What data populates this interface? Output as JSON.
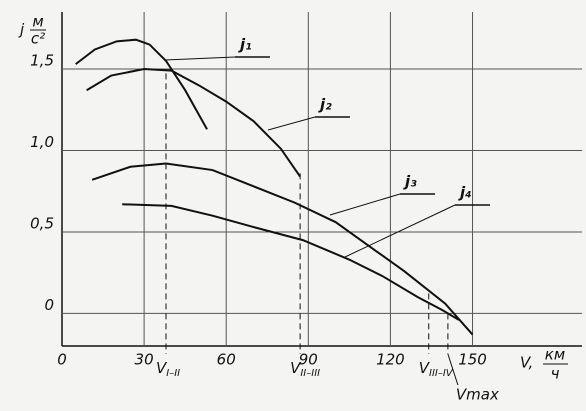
{
  "chart_data": {
    "type": "line",
    "ylabel": "j",
    "yunit": [
      "м",
      "с²"
    ],
    "xlabel": "V,",
    "xunit": [
      "км",
      "ч"
    ],
    "xlim": [
      0,
      190
    ],
    "ylim": [
      -0.2,
      1.85
    ],
    "xticks": [
      0,
      30,
      60,
      90,
      120,
      150
    ],
    "yticks": [
      {
        "value": 0,
        "label": "0"
      },
      {
        "value": 0.5,
        "label": "0,5"
      },
      {
        "value": 1.0,
        "label": "1,0"
      },
      {
        "value": 1.5,
        "label": "1,5"
      }
    ],
    "grid": true,
    "series": [
      {
        "name": "j₁",
        "color": "#111111",
        "x": [
          5,
          12,
          20,
          27,
          32,
          38,
          45,
          53
        ],
        "values": [
          1.53,
          1.62,
          1.67,
          1.68,
          1.65,
          1.55,
          1.37,
          1.13
        ]
      },
      {
        "name": "j₂",
        "color": "#111111",
        "x": [
          9,
          18,
          30,
          40,
          50,
          60,
          70,
          80,
          87
        ],
        "values": [
          1.37,
          1.46,
          1.5,
          1.49,
          1.4,
          1.3,
          1.18,
          1.01,
          0.84
        ]
      },
      {
        "name": "j₃",
        "color": "#111111",
        "x": [
          11,
          25,
          38,
          55,
          70,
          85,
          100,
          115,
          125,
          140,
          150
        ],
        "values": [
          0.82,
          0.9,
          0.92,
          0.88,
          0.78,
          0.68,
          0.56,
          0.38,
          0.26,
          0.06,
          -0.13
        ]
      },
      {
        "name": "j₄",
        "color": "#111111",
        "x": [
          22,
          40,
          55,
          70,
          88,
          105,
          117,
          130,
          139,
          145
        ],
        "values": [
          0.67,
          0.66,
          0.6,
          0.53,
          0.45,
          0.33,
          0.23,
          0.1,
          0.02,
          -0.04
        ]
      }
    ],
    "markers": [
      {
        "label": "V",
        "sub": "I–II",
        "x": 38
      },
      {
        "label": "V",
        "sub": "II–III",
        "x": 87
      },
      {
        "label": "V",
        "sub": "III–IV",
        "x": 134
      },
      {
        "label": "Vmax",
        "x": 141
      }
    ]
  }
}
